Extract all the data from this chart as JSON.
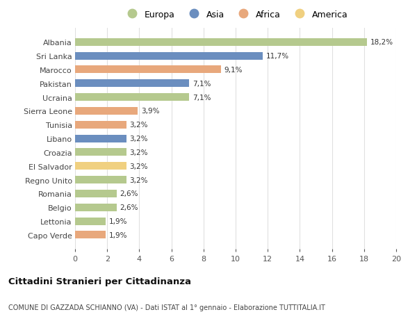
{
  "countries": [
    "Albania",
    "Sri Lanka",
    "Marocco",
    "Pakistan",
    "Ucraina",
    "Sierra Leone",
    "Tunisia",
    "Libano",
    "Croazia",
    "El Salvador",
    "Regno Unito",
    "Romania",
    "Belgio",
    "Lettonia",
    "Capo Verde"
  ],
  "values": [
    18.2,
    11.7,
    9.1,
    7.1,
    7.1,
    3.9,
    3.2,
    3.2,
    3.2,
    3.2,
    3.2,
    2.6,
    2.6,
    1.9,
    1.9
  ],
  "labels": [
    "18,2%",
    "11,7%",
    "9,1%",
    "7,1%",
    "7,1%",
    "3,9%",
    "3,2%",
    "3,2%",
    "3,2%",
    "3,2%",
    "3,2%",
    "2,6%",
    "2,6%",
    "1,9%",
    "1,9%"
  ],
  "colors": [
    "#b5c98e",
    "#6b8ebf",
    "#e8a87c",
    "#6b8ebf",
    "#b5c98e",
    "#e8a87c",
    "#e8a87c",
    "#6b8ebf",
    "#b5c98e",
    "#f0d080",
    "#b5c98e",
    "#b5c98e",
    "#b5c98e",
    "#b5c98e",
    "#e8a87c"
  ],
  "legend_labels": [
    "Europa",
    "Asia",
    "Africa",
    "America"
  ],
  "legend_colors": [
    "#b5c98e",
    "#6b8ebf",
    "#e8a87c",
    "#f0d080"
  ],
  "title": "Cittadini Stranieri per Cittadinanza",
  "subtitle": "COMUNE DI GAZZADA SCHIANNO (VA) - Dati ISTAT al 1° gennaio - Elaborazione TUTTITALIA.IT",
  "xlim": [
    0,
    20
  ],
  "xticks": [
    0,
    2,
    4,
    6,
    8,
    10,
    12,
    14,
    16,
    18,
    20
  ],
  "background_color": "#ffffff",
  "grid_color": "#e0e0e0"
}
